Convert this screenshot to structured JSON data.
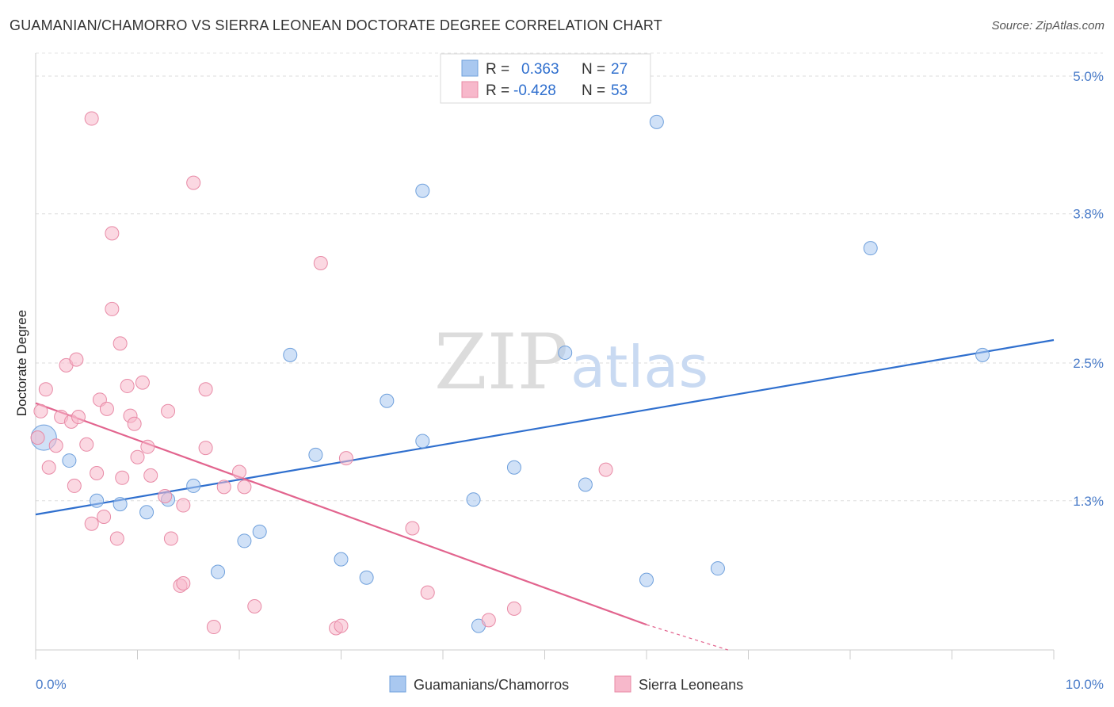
{
  "header": {
    "title": "GUAMANIAN/CHAMORRO VS SIERRA LEONEAN DOCTORATE DEGREE CORRELATION CHART",
    "source": "Source: ZipAtlas.com"
  },
  "watermark": {
    "zip": "ZIP",
    "atlas": "atlas"
  },
  "legend": {
    "rows": [
      {
        "r_label": "R =",
        "r_value": "0.363",
        "n_label": "N =",
        "n_value": "27",
        "color": "#a9c8f0"
      },
      {
        "r_label": "R =",
        "r_value": "-0.428",
        "n_label": "N =",
        "n_value": "53",
        "color": "#f7b8cb"
      }
    ]
  },
  "bottom_legend": [
    {
      "label": "Guamanians/Chamorros",
      "color": "#a9c8f0"
    },
    {
      "label": "Sierra Leoneans",
      "color": "#f7b8cb"
    }
  ],
  "chart_data": {
    "type": "scatter",
    "title": "GUAMANIAN/CHAMORRO VS SIERRA LEONEAN DOCTORATE DEGREE CORRELATION CHART",
    "ylabel": "Doctorate Degree",
    "xlabel": "",
    "xlim": [
      0,
      10
    ],
    "ylim": [
      0,
      5.2
    ],
    "x_tick_labels": [
      "0.0%",
      "10.0%"
    ],
    "y_ticks": [
      1.3,
      2.5,
      3.8,
      5.0
    ],
    "y_tick_labels": [
      "1.3%",
      "2.5%",
      "3.8%",
      "5.0%"
    ],
    "grid": true,
    "series": [
      {
        "name": "Guamanians/Chamorros",
        "color": "#a9c8f0",
        "stroke": "#6fa0dc",
        "trend_color": "#2f6fce",
        "trend": {
          "x": [
            0.0,
            10.0
          ],
          "y": [
            1.18,
            2.7
          ]
        },
        "points": [
          [
            0.08,
            1.85
          ],
          [
            0.33,
            1.65
          ],
          [
            0.6,
            1.3
          ],
          [
            0.83,
            1.27
          ],
          [
            1.09,
            1.2
          ],
          [
            1.3,
            1.31
          ],
          [
            1.55,
            1.43
          ],
          [
            1.79,
            0.68
          ],
          [
            2.05,
            0.95
          ],
          [
            2.2,
            1.03
          ],
          [
            2.5,
            2.57
          ],
          [
            2.75,
            1.7
          ],
          [
            3.0,
            0.79
          ],
          [
            3.25,
            0.63
          ],
          [
            3.45,
            2.17
          ],
          [
            3.8,
            1.82
          ],
          [
            3.8,
            4.0
          ],
          [
            4.3,
            1.31
          ],
          [
            4.35,
            0.21
          ],
          [
            4.7,
            1.59
          ],
          [
            5.2,
            2.59
          ],
          [
            5.4,
            1.44
          ],
          [
            6.0,
            0.61
          ],
          [
            6.1,
            4.6
          ],
          [
            6.7,
            0.71
          ],
          [
            8.2,
            3.5
          ],
          [
            9.3,
            2.57
          ]
        ],
        "large_point": [
          0.08,
          1.85
        ]
      },
      {
        "name": "Sierra Leoneans",
        "color": "#f7b8cb",
        "stroke": "#e88aa6",
        "trend_color": "#e2648e",
        "trend": {
          "x": [
            0.0,
            6.0
          ],
          "y": [
            2.15,
            0.22
          ]
        },
        "trend_dashed": {
          "x": [
            6.0,
            6.8
          ],
          "y": [
            0.22,
            0.0
          ]
        },
        "points": [
          [
            0.05,
            2.08
          ],
          [
            0.1,
            2.27
          ],
          [
            0.13,
            1.59
          ],
          [
            0.2,
            1.78
          ],
          [
            0.25,
            2.03
          ],
          [
            0.3,
            2.48
          ],
          [
            0.35,
            1.99
          ],
          [
            0.38,
            1.43
          ],
          [
            0.42,
            2.03
          ],
          [
            0.4,
            2.53
          ],
          [
            0.5,
            1.79
          ],
          [
            0.55,
            1.1
          ],
          [
            0.55,
            4.63
          ],
          [
            0.6,
            1.54
          ],
          [
            0.63,
            2.18
          ],
          [
            0.67,
            1.16
          ],
          [
            0.7,
            2.1
          ],
          [
            0.75,
            2.97
          ],
          [
            0.75,
            3.63
          ],
          [
            0.8,
            0.97
          ],
          [
            0.83,
            2.67
          ],
          [
            0.85,
            1.5
          ],
          [
            0.9,
            2.3
          ],
          [
            0.93,
            2.04
          ],
          [
            0.97,
            1.97
          ],
          [
            1.0,
            1.68
          ],
          [
            1.05,
            2.33
          ],
          [
            1.1,
            1.77
          ],
          [
            1.13,
            1.52
          ],
          [
            1.27,
            1.34
          ],
          [
            1.3,
            2.08
          ],
          [
            1.33,
            0.97
          ],
          [
            1.42,
            0.56
          ],
          [
            1.45,
            0.58
          ],
          [
            1.45,
            1.26
          ],
          [
            1.55,
            4.07
          ],
          [
            1.67,
            2.27
          ],
          [
            1.67,
            1.76
          ],
          [
            1.75,
            0.2
          ],
          [
            1.85,
            1.42
          ],
          [
            2.0,
            1.55
          ],
          [
            2.05,
            1.42
          ],
          [
            2.15,
            0.38
          ],
          [
            2.8,
            3.37
          ],
          [
            2.95,
            0.19
          ],
          [
            3.0,
            0.21
          ],
          [
            3.05,
            1.67
          ],
          [
            3.7,
            1.06
          ],
          [
            3.85,
            0.5
          ],
          [
            4.45,
            0.26
          ],
          [
            4.7,
            0.36
          ],
          [
            5.6,
            1.57
          ],
          [
            0.02,
            1.85
          ]
        ]
      }
    ]
  }
}
